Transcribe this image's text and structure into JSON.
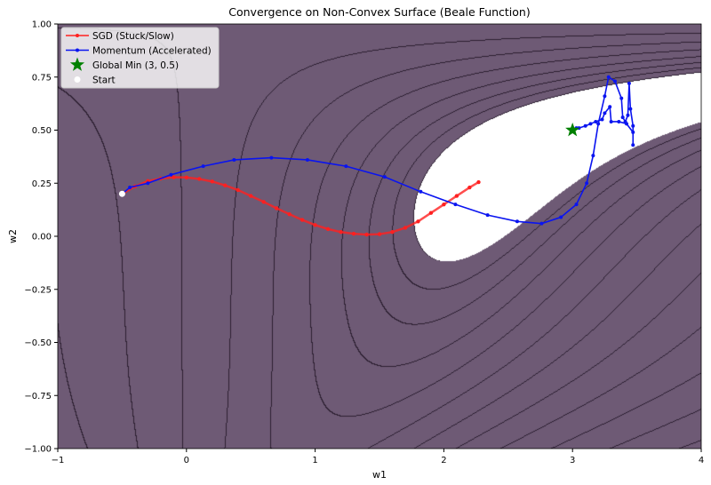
{
  "chart_data": {
    "type": "line",
    "title": "Convergence on Non-Convex Surface (Beale Function)",
    "xlabel": "w1",
    "ylabel": "w2",
    "xlim": [
      -1,
      4
    ],
    "ylim": [
      -1,
      1
    ],
    "xticks": [
      "−1",
      "0",
      "1",
      "2",
      "3",
      "4"
    ],
    "yticks": [
      "−1.00",
      "−0.75",
      "−0.50",
      "−0.25",
      "0.00",
      "0.25",
      "0.50",
      "0.75",
      "1.00"
    ],
    "background": "Beale function contour plot (log-spaced levels), minimum region shown white",
    "legend_position": "top-left",
    "series": [
      {
        "name": "SGD (Stuck/Slow)",
        "color": "#ff2020",
        "points": [
          [
            -0.5,
            0.2
          ],
          [
            -0.4,
            0.235
          ],
          [
            -0.3,
            0.26
          ],
          [
            -0.2,
            0.272
          ],
          [
            -0.1,
            0.278
          ],
          [
            0,
            0.277
          ],
          [
            0.1,
            0.27
          ],
          [
            0.2,
            0.258
          ],
          [
            0.3,
            0.24
          ],
          [
            0.4,
            0.218
          ],
          [
            0.5,
            0.19
          ],
          [
            0.6,
            0.162
          ],
          [
            0.7,
            0.132
          ],
          [
            0.8,
            0.104
          ],
          [
            0.9,
            0.077
          ],
          [
            1.0,
            0.053
          ],
          [
            1.1,
            0.034
          ],
          [
            1.2,
            0.02
          ],
          [
            1.3,
            0.012
          ],
          [
            1.4,
            0.008
          ],
          [
            1.5,
            0.01
          ],
          [
            1.6,
            0.02
          ],
          [
            1.7,
            0.04
          ],
          [
            1.8,
            0.07
          ],
          [
            1.9,
            0.11
          ],
          [
            2.0,
            0.15
          ],
          [
            2.1,
            0.19
          ],
          [
            2.2,
            0.23
          ],
          [
            2.27,
            0.255
          ]
        ]
      },
      {
        "name": "Momentum (Accelerated)",
        "color": "#0a14f0",
        "points": [
          [
            -0.5,
            0.2
          ],
          [
            -0.44,
            0.23
          ],
          [
            -0.3,
            0.25
          ],
          [
            -0.12,
            0.29
          ],
          [
            0.13,
            0.33
          ],
          [
            0.37,
            0.36
          ],
          [
            0.66,
            0.37
          ],
          [
            0.94,
            0.36
          ],
          [
            1.24,
            0.33
          ],
          [
            1.54,
            0.28
          ],
          [
            1.82,
            0.21
          ],
          [
            2.09,
            0.15
          ],
          [
            2.34,
            0.1
          ],
          [
            2.57,
            0.07
          ],
          [
            2.76,
            0.06
          ],
          [
            2.91,
            0.09
          ],
          [
            3.03,
            0.15
          ],
          [
            3.11,
            0.25
          ],
          [
            3.16,
            0.38
          ],
          [
            3.2,
            0.53
          ],
          [
            3.25,
            0.66
          ],
          [
            3.28,
            0.75
          ],
          [
            3.33,
            0.73
          ],
          [
            3.38,
            0.65
          ],
          [
            3.39,
            0.56
          ],
          [
            3.41,
            0.54
          ],
          [
            3.43,
            0.57
          ],
          [
            3.44,
            0.72
          ],
          [
            3.45,
            0.6
          ],
          [
            3.47,
            0.52
          ],
          [
            3.47,
            0.43
          ],
          [
            3.47,
            0.49
          ],
          [
            3.42,
            0.53
          ],
          [
            3.36,
            0.54
          ],
          [
            3.3,
            0.54
          ],
          [
            3.29,
            0.61
          ],
          [
            3.25,
            0.58
          ],
          [
            3.23,
            0.55
          ],
          [
            3.18,
            0.54
          ],
          [
            3.14,
            0.53
          ],
          [
            3.1,
            0.52
          ],
          [
            3.05,
            0.51
          ],
          [
            3.03,
            0.51
          ]
        ]
      }
    ],
    "markers": [
      {
        "name": "Global Min (3, 0.5)",
        "x": 3,
        "y": 0.5,
        "color": "#008000",
        "shape": "star"
      },
      {
        "name": "Start",
        "x": -0.5,
        "y": 0.2,
        "color": "#ffffff",
        "shape": "circle"
      }
    ],
    "fill_color": "#6e5a75"
  }
}
